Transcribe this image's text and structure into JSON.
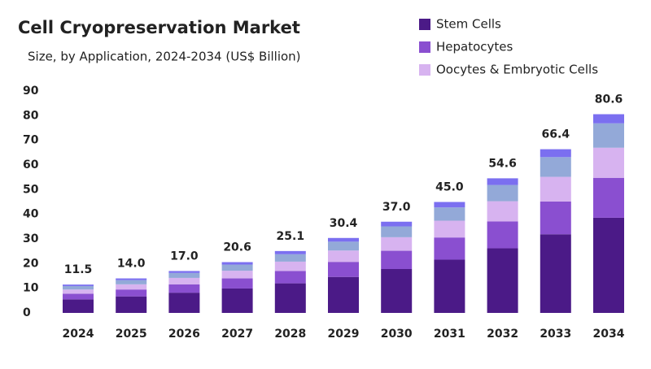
{
  "chart_data": {
    "type": "stacked-bar",
    "title": "Cell Cryopreservation Market",
    "subtitle": "Size, by Application, 2024-2034 (US$ Billion)",
    "categories": [
      "2024",
      "2025",
      "2026",
      "2027",
      "2028",
      "2029",
      "2030",
      "2031",
      "2032",
      "2033",
      "2034"
    ],
    "series": [
      {
        "name": "Stem Cells",
        "color": "#4b1a87",
        "values": [
          5.5,
          6.7,
          8.2,
          9.9,
          12.0,
          14.6,
          17.8,
          21.6,
          26.2,
          31.9,
          38.6
        ]
      },
      {
        "name": "Hepatocytes",
        "color": "#8a4fd0",
        "values": [
          2.3,
          2.8,
          3.4,
          4.1,
          5.0,
          6.1,
          7.4,
          9.0,
          10.9,
          13.3,
          16.2
        ]
      },
      {
        "name": "Oocytes & Embryotic Cells",
        "color": "#d7b3f0",
        "values": [
          1.7,
          2.1,
          2.6,
          3.1,
          3.8,
          4.6,
          5.5,
          6.8,
          8.2,
          10.0,
          12.2
        ]
      },
      {
        "color": "#93a9d8",
        "values": [
          1.4,
          1.7,
          2.0,
          2.5,
          3.0,
          3.6,
          4.4,
          5.4,
          6.6,
          8.0,
          9.9
        ]
      },
      {
        "color": "#7b6ff0",
        "values": [
          0.6,
          0.7,
          0.8,
          1.0,
          1.3,
          1.5,
          1.9,
          2.2,
          2.7,
          3.2,
          3.7
        ]
      }
    ],
    "totals": {
      "values": [
        11.5,
        14.0,
        17.0,
        20.6,
        25.1,
        30.4,
        37.0,
        45.0,
        54.6,
        66.4,
        80.6
      ],
      "value_labels": [
        "11.5",
        "14.0",
        "17.0",
        "20.6",
        "25.1",
        "30.4",
        "37.0",
        "45.0",
        "54.6",
        "66.4",
        "80.6"
      ]
    },
    "ylim": [
      0,
      90
    ],
    "yticks": [
      0,
      10,
      20,
      30,
      40,
      50,
      60,
      70,
      80,
      90
    ],
    "grid": false
  }
}
